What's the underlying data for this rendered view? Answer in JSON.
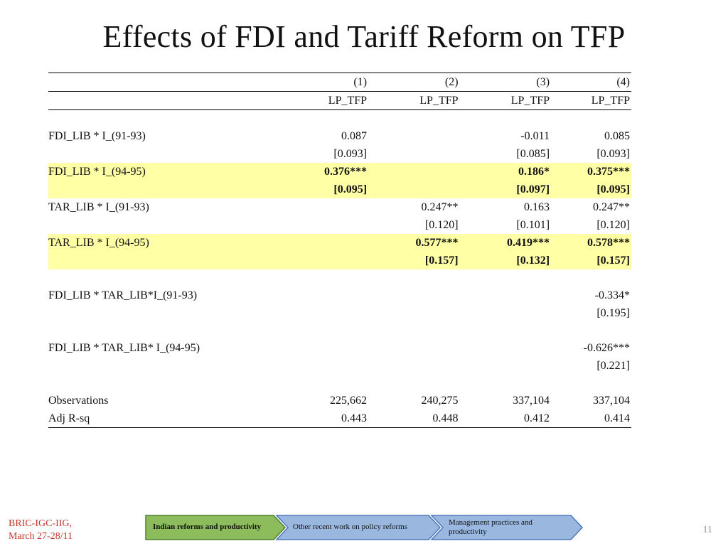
{
  "title": "Effects of FDI and Tariff Reform on TFP",
  "table": {
    "col_numbers": [
      "(1)",
      "(2)",
      "(3)",
      "(4)"
    ],
    "dep_var": [
      "LP_TFP",
      "LP_TFP",
      "LP_TFP",
      "LP_TFP"
    ],
    "rows": [
      {
        "label": "FDI_LIB * I_(91-93)",
        "vals": [
          "0.087",
          "",
          "-0.011",
          "0.085"
        ],
        "highlight": false
      },
      {
        "label": "",
        "vals": [
          "[0.093]",
          "",
          "[0.085]",
          "[0.093]"
        ],
        "highlight": false
      },
      {
        "label": "FDI_LIB * I_(94-95)",
        "vals": [
          "0.376***",
          "",
          "0.186*",
          "0.375***"
        ],
        "highlight": true
      },
      {
        "label": "",
        "vals": [
          "[0.095]",
          "",
          "[0.097]",
          "[0.095]"
        ],
        "highlight": true
      },
      {
        "label": "TAR_LIB * I_(91-93)",
        "vals": [
          "",
          "0.247**",
          "0.163",
          "0.247**"
        ],
        "highlight": false
      },
      {
        "label": "",
        "vals": [
          "",
          "[0.120]",
          "[0.101]",
          "[0.120]"
        ],
        "highlight": false
      },
      {
        "label": "TAR_LIB * I_(94-95)",
        "vals": [
          "",
          "0.577***",
          "0.419***",
          "0.578***"
        ],
        "highlight": true
      },
      {
        "label": "",
        "vals": [
          "",
          "[0.157]",
          "[0.132]",
          "[0.157]"
        ],
        "highlight": true
      },
      {
        "label": "FDI_LIB * TAR_LIB*I_(91-93)",
        "vals": [
          "",
          "",
          "",
          "-0.334*"
        ],
        "highlight": false
      },
      {
        "label": "",
        "vals": [
          "",
          "",
          "",
          "[0.195]"
        ],
        "highlight": false
      },
      {
        "label": "FDI_LIB * TAR_LIB* I_(94-95)",
        "vals": [
          "",
          "",
          "",
          "-0.626***"
        ],
        "highlight": false
      },
      {
        "label": "",
        "vals": [
          "",
          "",
          "",
          "[0.221]"
        ],
        "highlight": false
      },
      {
        "label": "Observations",
        "vals": [
          "225,662",
          "240,275",
          "337,104",
          "337,104"
        ],
        "highlight": false
      },
      {
        "label": "Adj R-sq",
        "vals": [
          "0.443",
          "0.448",
          "0.412",
          "0.414"
        ],
        "highlight": false
      }
    ]
  },
  "footer": {
    "left_line1": "BRIC-IGC-IIG,",
    "left_line2": "March 27-28/11",
    "page_number": "11"
  },
  "nav": {
    "items": [
      {
        "label": "Indian reforms and productivity",
        "active": true
      },
      {
        "label": "Other recent work on policy reforms",
        "active": false
      },
      {
        "label": "Management practices and productivity",
        "active": false
      }
    ]
  },
  "colors": {
    "highlight": "#ffffa6",
    "nav_active": "#8cbc5c",
    "nav_inactive": "#9ab8df",
    "footer_text": "#c0392b"
  }
}
